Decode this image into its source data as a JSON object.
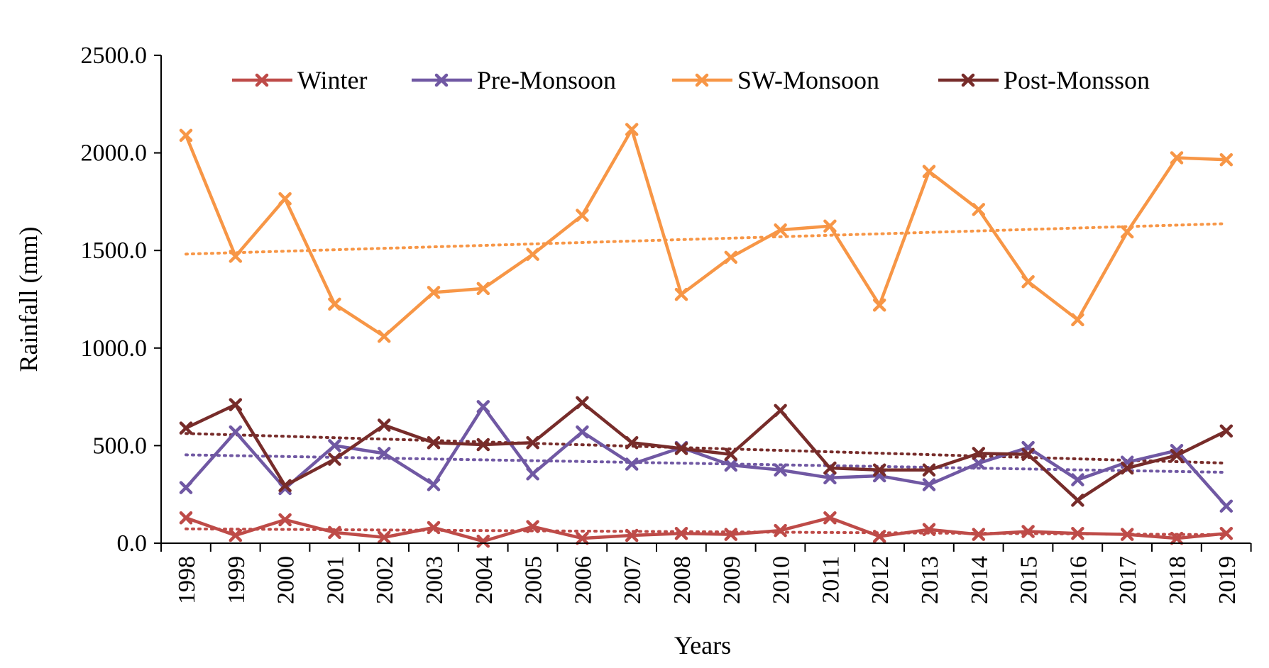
{
  "chart_data": {
    "type": "line",
    "title": "",
    "xlabel": "Years",
    "ylabel": "Rainfall (mm)",
    "ylim": [
      0,
      2500
    ],
    "yticks": [
      "0.0",
      "500.0",
      "1000.0",
      "1500.0",
      "2000.0",
      "2500.0"
    ],
    "x": [
      "1998",
      "1999",
      "2000",
      "2001",
      "2002",
      "2003",
      "2004",
      "2005",
      "2006",
      "2007",
      "2008",
      "2009",
      "2010",
      "2011",
      "2012",
      "2013",
      "2014",
      "2015",
      "2016",
      "2017",
      "2018",
      "2019"
    ],
    "grid": false,
    "legend_position": "top",
    "trendlines": "linear, dotted",
    "series": [
      {
        "name": "Winter",
        "color": "#be4b48",
        "values": [
          130,
          40,
          120,
          55,
          30,
          80,
          10,
          85,
          25,
          40,
          50,
          45,
          65,
          130,
          35,
          70,
          45,
          60,
          50,
          45,
          25,
          50
        ]
      },
      {
        "name": "Pre-Monsoon",
        "color": "#7058a3",
        "values": [
          285,
          570,
          280,
          500,
          460,
          300,
          700,
          355,
          570,
          405,
          490,
          400,
          375,
          335,
          345,
          300,
          410,
          490,
          325,
          415,
          475,
          190
        ]
      },
      {
        "name": "SW-Monsoon",
        "color": "#f79646",
        "values": [
          2090,
          1470,
          1765,
          1225,
          1060,
          1285,
          1305,
          1480,
          1680,
          2120,
          1275,
          1465,
          1605,
          1625,
          1220,
          1905,
          1710,
          1340,
          1145,
          1595,
          1975,
          1965
        ]
      },
      {
        "name": "Post-Monsson",
        "color": "#772c2a",
        "values": [
          590,
          710,
          295,
          430,
          605,
          515,
          505,
          515,
          720,
          515,
          485,
          455,
          680,
          385,
          375,
          375,
          460,
          455,
          220,
          385,
          450,
          575
        ]
      }
    ]
  }
}
